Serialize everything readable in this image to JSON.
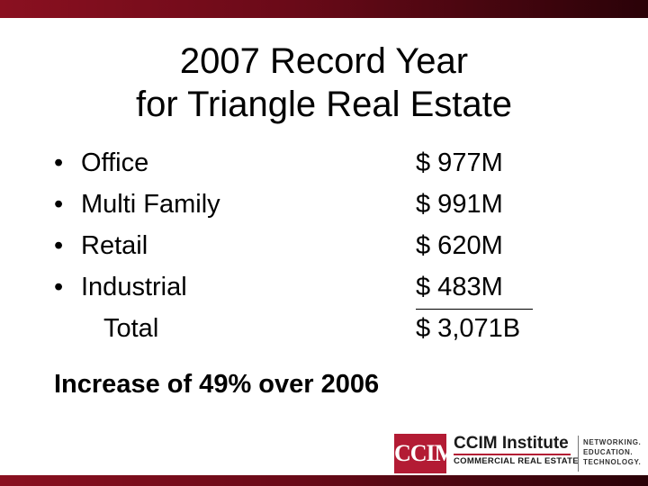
{
  "title": {
    "line1": "2007 Record Year",
    "line2": "for Triangle Real Estate"
  },
  "items": [
    {
      "bullet": "•",
      "label": "Office",
      "value": "$ 977M"
    },
    {
      "bullet": "•",
      "label": "Multi Family",
      "value": "$ 991M"
    },
    {
      "bullet": "•",
      "label": "Retail",
      "value": "$ 620M"
    },
    {
      "bullet": "•",
      "label": "Industrial",
      "value": "$ 483M"
    }
  ],
  "total": {
    "label": "Total",
    "value": "$ 3,071B"
  },
  "footnote": "Increase of 49% over 2006",
  "logo": {
    "mark": "CCIM",
    "name": "CCIM Institute",
    "subtitle": "COMMERCIAL REAL ESTATE",
    "tag_line1": "NETWORKING.",
    "tag_line2": "EDUCATION.",
    "tag_line3": "TECHNOLOGY."
  },
  "colors": {
    "accent": "#8a1020",
    "logo_red": "#b31b34"
  }
}
